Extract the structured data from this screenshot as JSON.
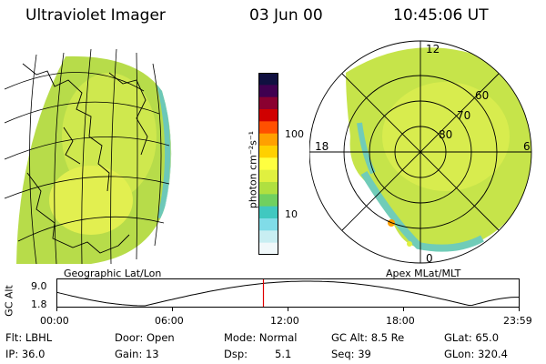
{
  "header": {
    "title": "Ultraviolet Imager",
    "date": "03 Jun 00",
    "time": "10:45:06 UT"
  },
  "colorbar": {
    "label": "photon cm⁻²s⁻¹",
    "ticks": [
      "100",
      "10"
    ],
    "colors": [
      "#101040",
      "#400050",
      "#8a0030",
      "#d00000",
      "#ff5000",
      "#ffa000",
      "#ffd000",
      "#ffff40",
      "#e0f040",
      "#b0e040",
      "#70d060",
      "#40c8c0",
      "#80dce8",
      "#c8eef2",
      "#f0f8fa"
    ]
  },
  "left_panel": {
    "label": "Geographic Lat/Lon"
  },
  "right_panel": {
    "label": "Apex MLat/MLT",
    "mlt_labels": {
      "top": "12",
      "left": "18",
      "right": "6",
      "bottom": "0"
    },
    "lat_labels": [
      "60",
      "70",
      "80"
    ]
  },
  "altitude_plot": {
    "ylabel": "GC Alt",
    "ymax": "9.0",
    "ymin": "1.8",
    "xticks": [
      "00:00",
      "06:00",
      "12:00",
      "18:00",
      "23:59"
    ],
    "current_time_hours": 10.75,
    "marker_color": "#e00000"
  },
  "info": {
    "flt": "Flt: LBHL",
    "ip": "IP: 36.0",
    "door": "Door: Open",
    "gain": "Gain: 13",
    "mode": "Mode: Normal",
    "dsp_label": "Dsp:",
    "dsp_value": "5.1",
    "gcalt": "GC Alt: 8.5 Re",
    "seq": "Seq: 39",
    "glat": "GLat: 65.0",
    "glon": "GLon: 320.4"
  }
}
